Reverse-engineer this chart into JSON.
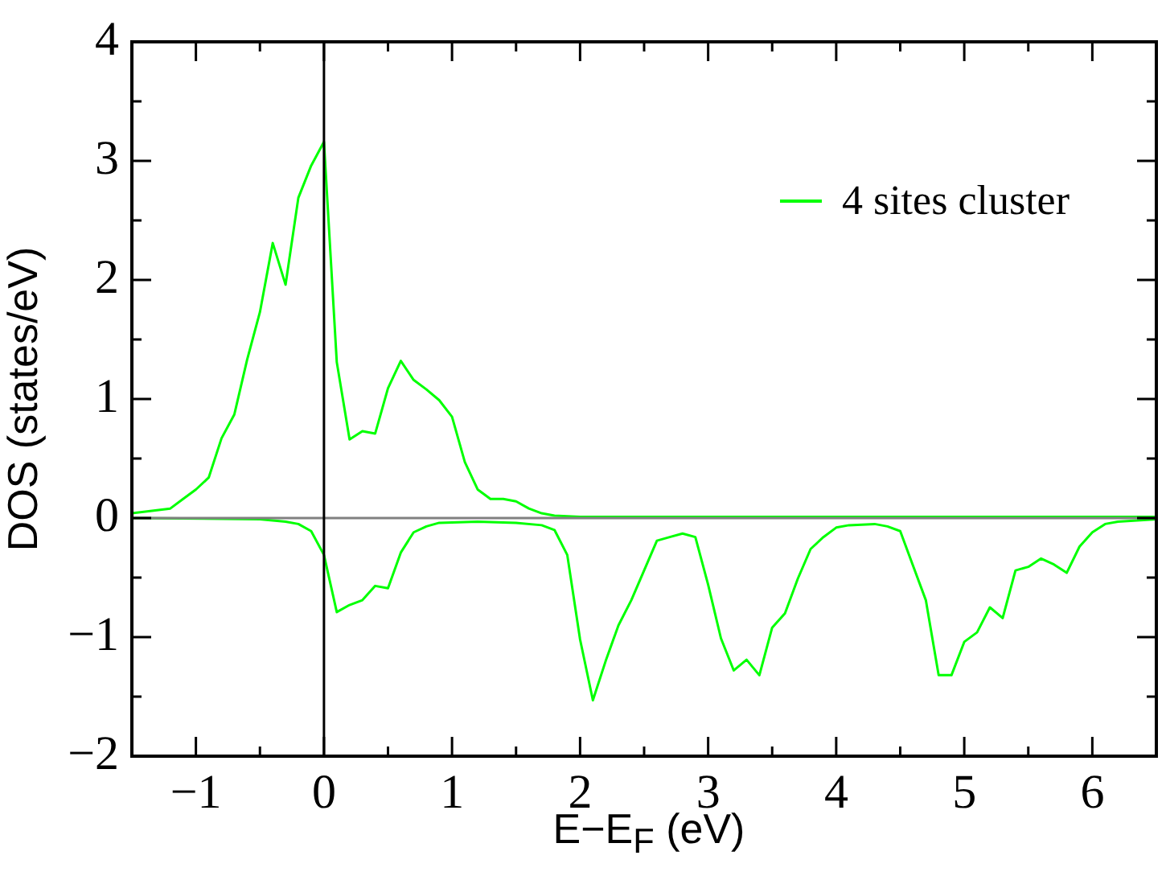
{
  "chart_data": {
    "type": "line",
    "xlabel": "E−E$_{F}$ (eV)",
    "ylabel": "DOS (states/eV)",
    "xlim": [
      -1.5,
      6.5
    ],
    "xticks": [
      {
        "value": -1.5,
        "label": null
      },
      -1,
      {
        "value": -0.5,
        "label": null
      },
      0,
      {
        "value": 0.5,
        "label": null
      },
      1,
      {
        "value": 1.5,
        "label": null
      },
      2,
      {
        "value": 2.5,
        "label": null
      },
      3,
      {
        "value": 3.5,
        "label": null
      },
      4,
      {
        "value": 4.5,
        "label": null
      },
      5,
      {
        "value": 5.5,
        "label": null
      },
      6,
      {
        "value": 6.5,
        "label": null
      }
    ],
    "ylim": [
      -2,
      4
    ],
    "yticks": [
      -2,
      {
        "value": -1.5,
        "label": null
      },
      -1,
      {
        "value": -0.5,
        "label": null
      },
      0,
      {
        "value": 0.5,
        "label": null
      },
      1,
      {
        "value": 1.5,
        "label": null
      },
      2,
      {
        "value": 2.5,
        "label": null
      },
      3,
      {
        "value": 3.5,
        "label": null
      },
      4
    ],
    "grid": false,
    "legend": "top right",
    "marker": "none",
    "line_style": "solid",
    "ref_lines": [
      {
        "axis": "y",
        "value": 0,
        "color": "#808080"
      },
      {
        "axis": "x",
        "value": 0,
        "color": "#000000"
      }
    ],
    "series": [
      {
        "name": "4 sites cluster",
        "color": "#00ff00",
        "x": [
          -1.5,
          -1.2,
          -1.1,
          -1.0,
          -0.9,
          -0.8,
          -0.7,
          -0.6,
          -0.5,
          -0.4,
          -0.3,
          -0.2,
          -0.1,
          0,
          0.1,
          0.2,
          0.3,
          0.4,
          0.5,
          0.6,
          0.7,
          0.8,
          0.9,
          1.0,
          1.1,
          1.2,
          1.3,
          1.4,
          1.5,
          1.6,
          1.7,
          1.8,
          2.0,
          6.5
        ],
        "values": [
          0.04,
          0.08,
          0.16,
          0.24,
          0.34,
          0.67,
          0.87,
          1.33,
          1.73,
          2.31,
          1.96,
          2.69,
          2.96,
          3.16,
          1.31,
          0.66,
          0.73,
          0.71,
          1.09,
          1.32,
          1.16,
          1.08,
          0.99,
          0.85,
          0.47,
          0.24,
          0.16,
          0.16,
          0.14,
          0.08,
          0.04,
          0.02,
          0.01,
          0.01
        ]
      },
      {
        "color": "#00ff00",
        "x": [
          -1.5,
          -0.5,
          -0.3,
          -0.2,
          -0.1,
          0,
          0.1,
          0.2,
          0.3,
          0.4,
          0.5,
          0.6,
          0.7,
          0.8,
          0.9,
          1.2,
          1.5,
          1.7,
          1.8,
          1.9,
          2.0,
          2.1,
          2.2,
          2.3,
          2.4,
          2.5,
          2.6,
          2.7,
          2.8,
          2.9,
          3.0,
          3.1,
          3.2,
          3.3,
          3.4,
          3.5,
          3.6,
          3.7,
          3.8,
          3.9,
          4.0,
          4.1,
          4.3,
          4.4,
          4.5,
          4.6,
          4.7,
          4.8,
          4.9,
          5.0,
          5.1,
          5.2,
          5.3,
          5.4,
          5.5,
          5.6,
          5.7,
          5.8,
          5.9,
          6.0,
          6.1,
          6.2,
          6.5
        ],
        "values": [
          0,
          -0.01,
          -0.03,
          -0.05,
          -0.11,
          -0.31,
          -0.79,
          -0.73,
          -0.69,
          -0.57,
          -0.59,
          -0.29,
          -0.12,
          -0.07,
          -0.04,
          -0.03,
          -0.04,
          -0.06,
          -0.1,
          -0.31,
          -1.02,
          -1.53,
          -1.2,
          -0.9,
          -0.69,
          -0.44,
          -0.19,
          -0.16,
          -0.13,
          -0.16,
          -0.56,
          -1.01,
          -1.28,
          -1.19,
          -1.32,
          -0.92,
          -0.8,
          -0.51,
          -0.26,
          -0.16,
          -0.08,
          -0.06,
          -0.05,
          -0.07,
          -0.11,
          -0.4,
          -0.69,
          -1.32,
          -1.32,
          -1.04,
          -0.96,
          -0.75,
          -0.84,
          -0.44,
          -0.41,
          -0.34,
          -0.39,
          -0.46,
          -0.24,
          -0.12,
          -0.05,
          -0.03,
          -0.01
        ]
      }
    ]
  }
}
